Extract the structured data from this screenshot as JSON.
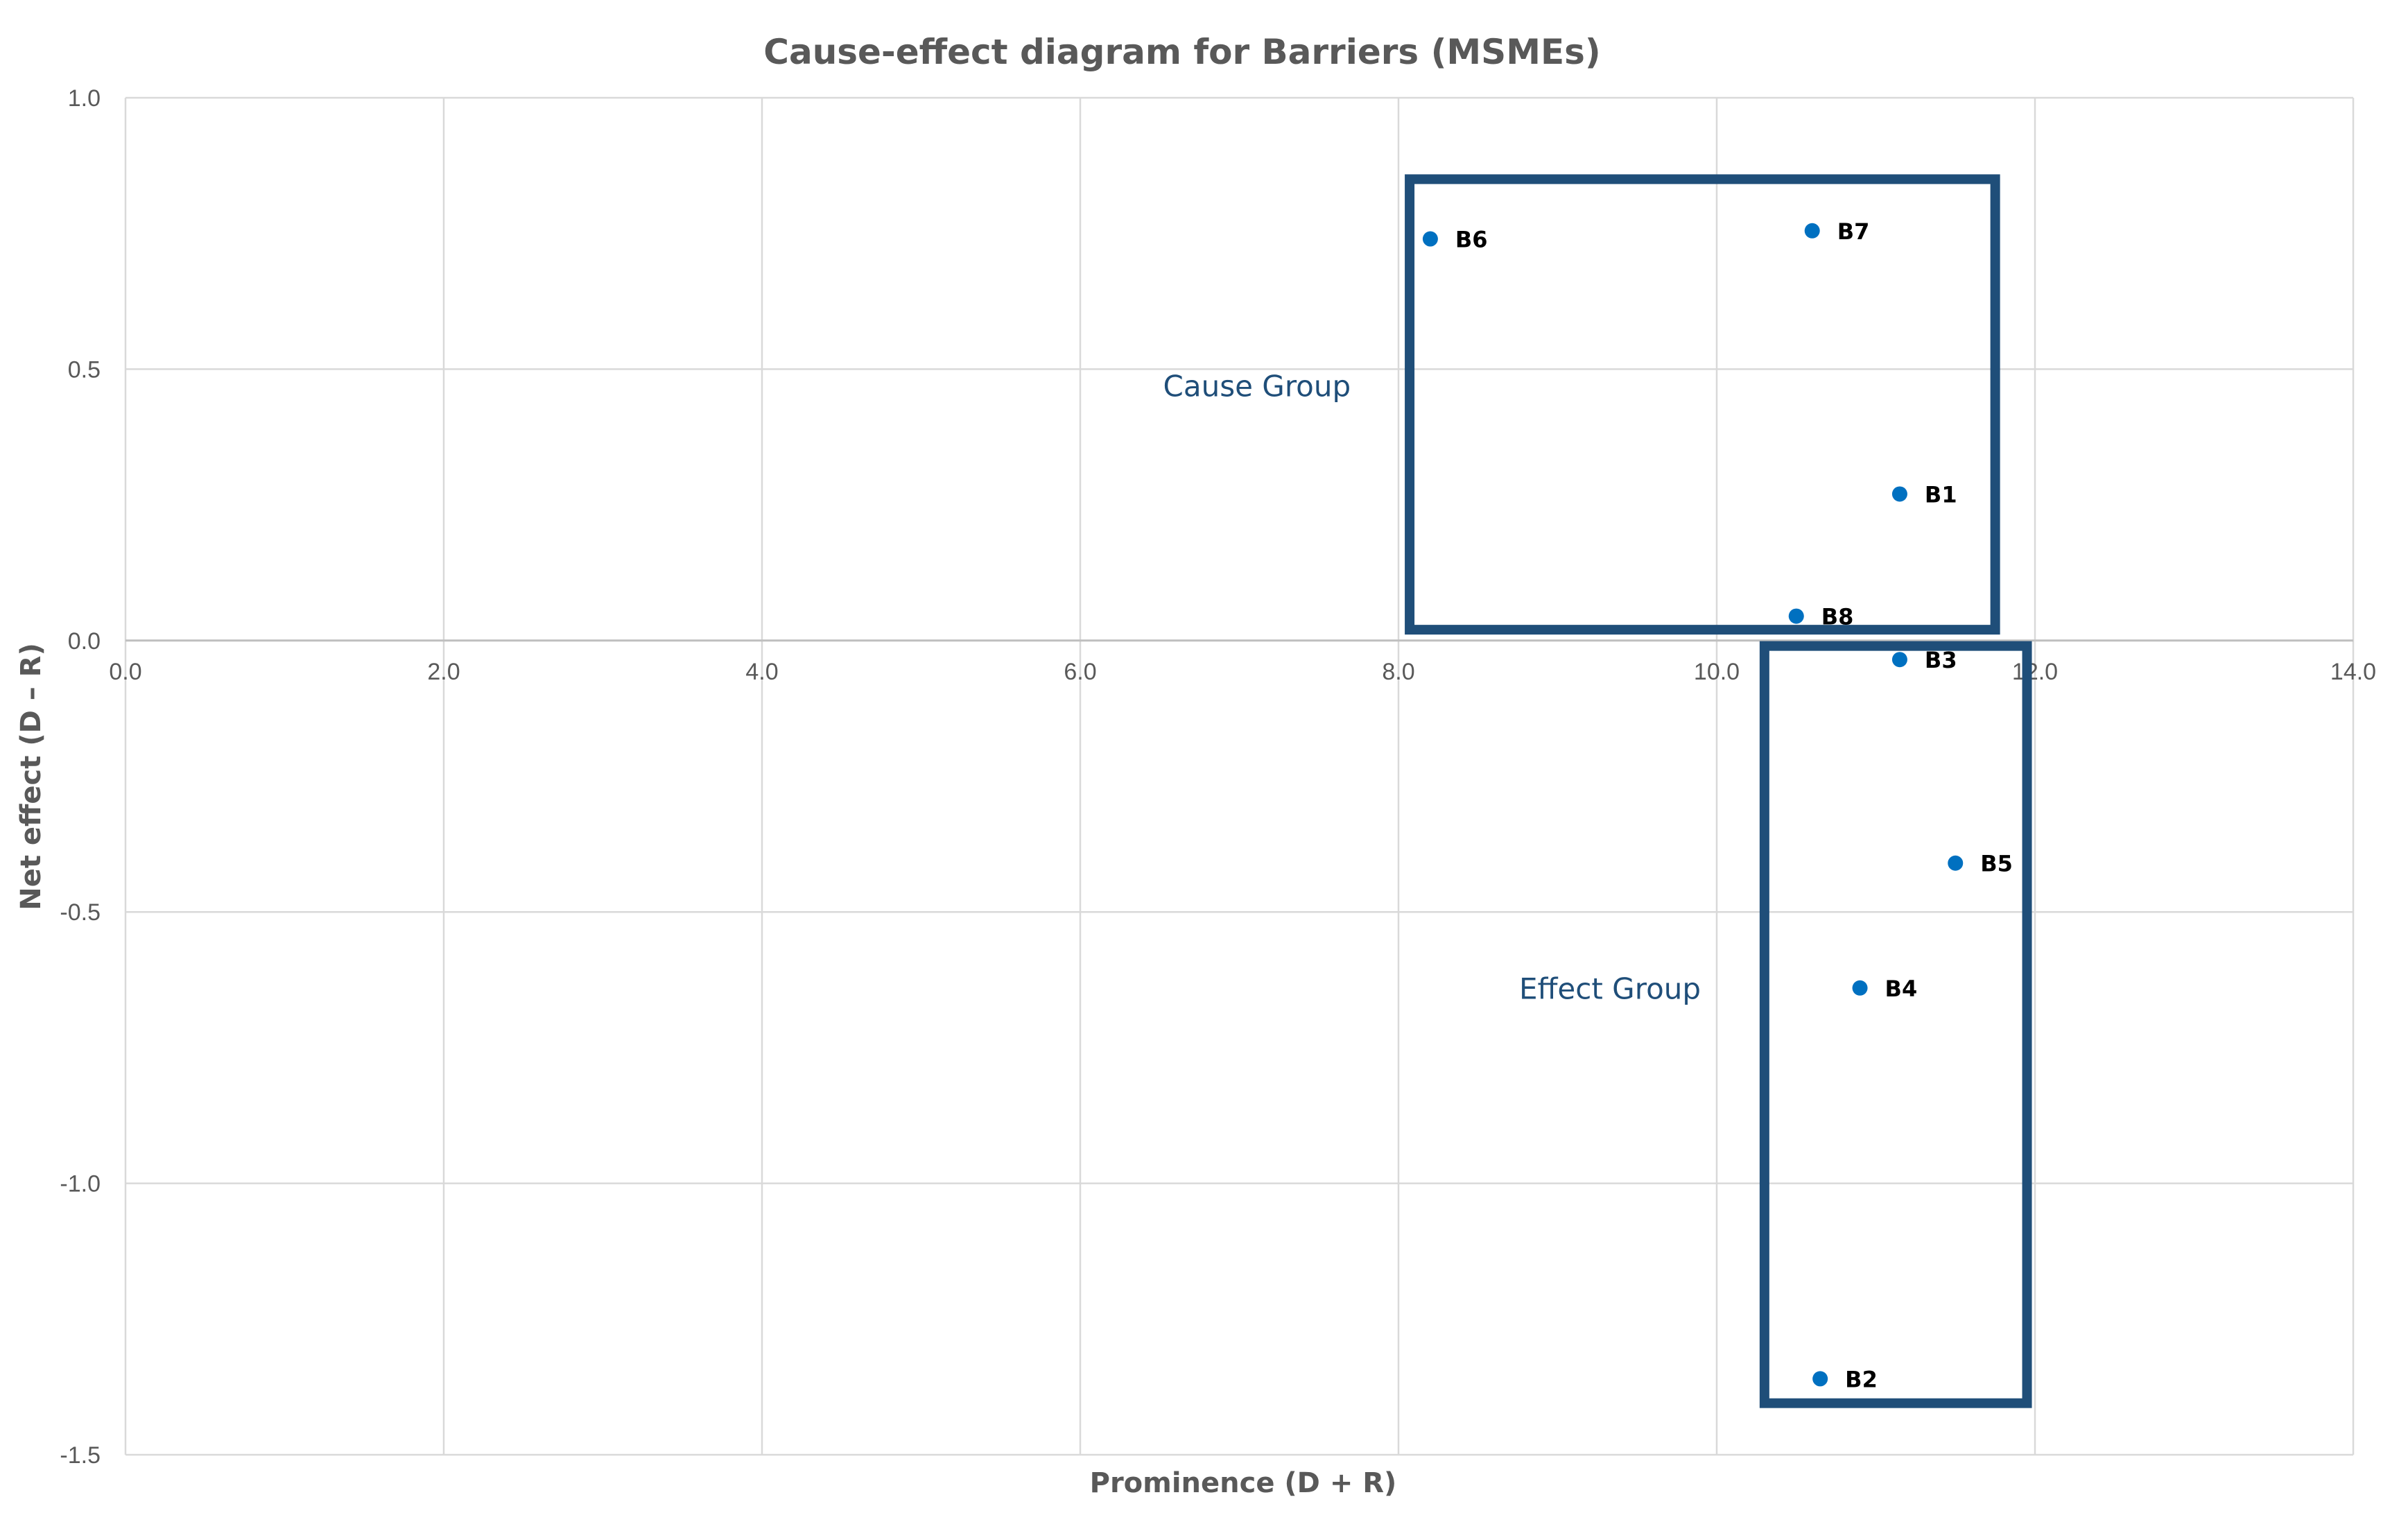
{
  "chart_data": {
    "type": "scatter",
    "title": "Cause-effect diagram for Barriers (MSMEs)",
    "xlabel": "Prominence (D + R)",
    "ylabel": "Net effect (D – R)",
    "xlim": [
      0,
      14
    ],
    "ylim": [
      -1.5,
      1.0
    ],
    "x_ticks": [
      0,
      2,
      4,
      6,
      8,
      10,
      12,
      14
    ],
    "y_ticks": [
      -1.5,
      -1.0,
      -0.5,
      0.0,
      0.5,
      1.0
    ],
    "x_tick_labels": [
      "0.0",
      "2.0",
      "4.0",
      "6.0",
      "8.0",
      "10.0",
      "12.0",
      "14.0"
    ],
    "y_tick_labels": [
      "-1.5",
      "-1.0",
      "-0.5",
      "0.0",
      "0.5",
      "1.0"
    ],
    "grid": true,
    "marker_color": "#0070C0",
    "points": [
      {
        "label": "B6",
        "x": 8.2,
        "y": 0.74
      },
      {
        "label": "B7",
        "x": 10.6,
        "y": 0.755
      },
      {
        "label": "B1",
        "x": 11.15,
        "y": 0.27
      },
      {
        "label": "B8",
        "x": 10.5,
        "y": 0.045
      },
      {
        "label": "B3",
        "x": 11.15,
        "y": -0.035
      },
      {
        "label": "B5",
        "x": 11.5,
        "y": -0.41
      },
      {
        "label": "B4",
        "x": 10.9,
        "y": -0.64
      },
      {
        "label": "B2",
        "x": 10.65,
        "y": -1.36
      }
    ],
    "groups": [
      {
        "name": "Cause Group",
        "x_range": [
          8.07,
          11.75
        ],
        "y_range": [
          0.02,
          0.85
        ],
        "label_x": 7.7,
        "label_y": 0.45
      },
      {
        "name": "Effect Group",
        "x_range": [
          10.3,
          11.95
        ],
        "y_range": [
          -1.405,
          -0.01
        ],
        "label_x": 9.9,
        "label_y": -0.66
      }
    ],
    "group_color": "#1F4E79"
  }
}
